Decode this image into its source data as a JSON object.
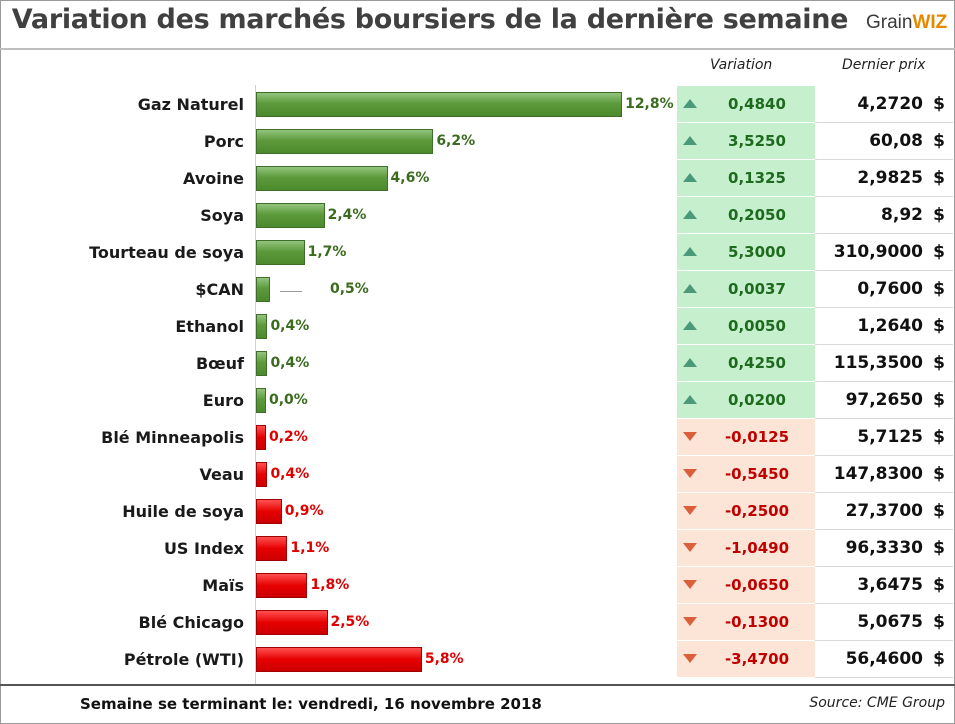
{
  "title": "Variation des marchés boursiers de la dernière semaine",
  "logo": {
    "part1": "Grain",
    "part2": "WIZ"
  },
  "headers": {
    "variation": "Variation",
    "price": "Dernier prix"
  },
  "footer": {
    "left": "Semaine se terminant le:  vendredi, 16 novembre 2018",
    "right": "Source: CME Group"
  },
  "currency_symbol": "$",
  "colors": {
    "up_bar": "#5d9a3c",
    "down_bar": "#e60000",
    "up_cell": "#c6efce",
    "down_cell": "#fce4d6",
    "up_arrow": "#4a9a7a",
    "down_arrow": "#d9603a"
  },
  "chart_data": {
    "type": "bar",
    "orientation": "horizontal",
    "title": "Variation des marchés boursiers de la dernière semaine",
    "categories": [
      "Gaz Naturel",
      "Porc",
      "Avoine",
      "Soya",
      "Tourteau de soya",
      "$CAN",
      "Ethanol",
      "Bœuf",
      "Euro",
      "Blé Minneapolis",
      "Veau",
      "Huile de soya",
      "US Index",
      "Maïs",
      "Blé Chicago",
      "Pétrole (WTI)"
    ],
    "values": [
      12.8,
      6.2,
      4.6,
      2.4,
      1.7,
      0.5,
      0.4,
      0.4,
      0.0,
      0.2,
      0.4,
      0.9,
      1.1,
      1.8,
      2.5,
      5.8
    ],
    "value_labels": [
      "12,8%",
      "6,2%",
      "4,6%",
      "2,4%",
      "1,7%",
      "0,5%",
      "0,4%",
      "0,4%",
      "0,0%",
      "0,2%",
      "0,4%",
      "0,9%",
      "1,1%",
      "1,8%",
      "2,5%",
      "5,8%"
    ],
    "direction": [
      "up",
      "up",
      "up",
      "up",
      "up",
      "up",
      "up",
      "up",
      "up",
      "down",
      "down",
      "down",
      "down",
      "down",
      "down",
      "down"
    ],
    "variation": [
      "0,4840",
      "3,5250",
      "0,1325",
      "0,2050",
      "5,3000",
      "0,0037",
      "0,0050",
      "0,4250",
      "0,0200",
      "-0,0125",
      "-0,5450",
      "-0,2500",
      "-1,0490",
      "-0,0650",
      "-0,1300",
      "-3,4700"
    ],
    "last_price": [
      "4,2720",
      "60,08",
      "2,9825",
      "8,92",
      "310,9000",
      "0,7600",
      "1,2640",
      "115,3500",
      "97,2650",
      "5,7125",
      "147,8300",
      "27,3700",
      "96,3330",
      "3,6475",
      "5,0675",
      "56,4600"
    ]
  }
}
